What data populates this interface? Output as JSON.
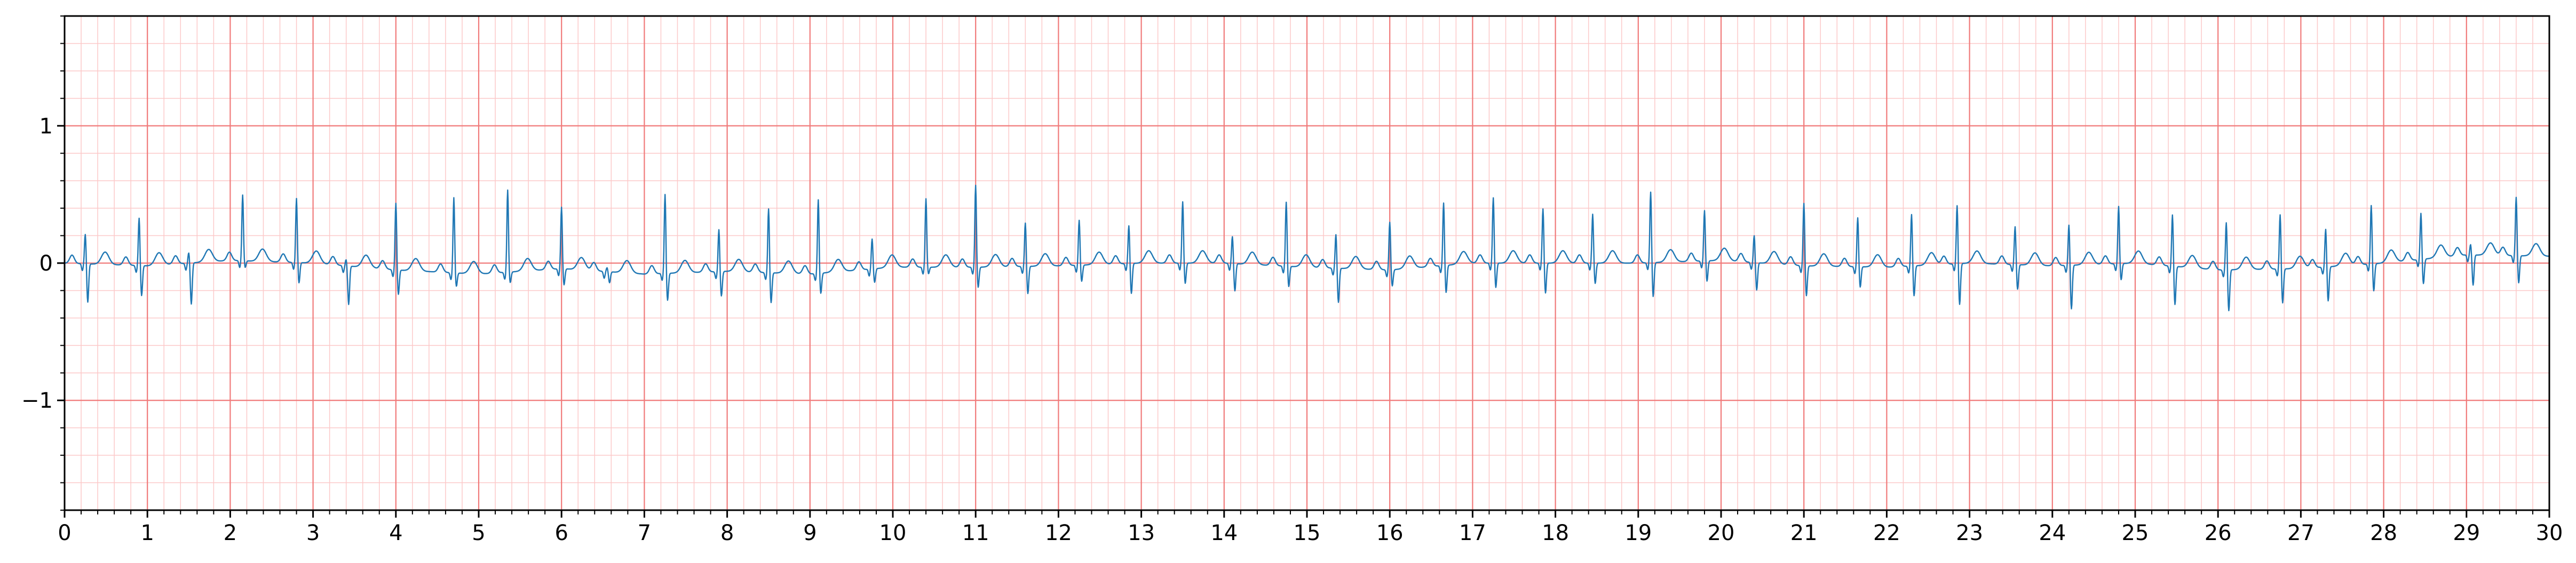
{
  "chart_data": {
    "type": "line",
    "title": "",
    "xlabel": "",
    "ylabel": "",
    "xlim": [
      0,
      30
    ],
    "ylim": [
      -1.8,
      1.8
    ],
    "x_ticks": [
      0,
      1,
      2,
      3,
      4,
      5,
      6,
      7,
      8,
      9,
      10,
      11,
      12,
      13,
      14,
      15,
      16,
      17,
      18,
      19,
      20,
      21,
      22,
      23,
      24,
      25,
      26,
      27,
      28,
      29,
      30
    ],
    "x_tick_labels": [
      "0",
      "1",
      "2",
      "3",
      "4",
      "5",
      "6",
      "7",
      "8",
      "9",
      "10",
      "11",
      "12",
      "13",
      "14",
      "15",
      "16",
      "17",
      "18",
      "19",
      "20",
      "21",
      "22",
      "23",
      "24",
      "25",
      "26",
      "27",
      "28",
      "29",
      "30"
    ],
    "y_ticks": [
      -1,
      0,
      1
    ],
    "y_tick_labels": [
      "−1",
      "0",
      "1"
    ],
    "grid": "on",
    "grid_major_step": {
      "x": 1,
      "y": 1
    },
    "grid_minor_step": {
      "x": 0.2,
      "y": 0.2
    },
    "beat_times": [
      0.25,
      0.9,
      1.5,
      2.15,
      2.8,
      3.4,
      4.0,
      4.7,
      5.35,
      6.0,
      6.55,
      7.25,
      7.9,
      8.5,
      9.1,
      9.75,
      10.4,
      11.0,
      11.6,
      12.25,
      12.85,
      13.5,
      14.1,
      14.75,
      15.35,
      16.0,
      16.65,
      17.25,
      17.85,
      18.45,
      19.15,
      19.8,
      20.4,
      21.0,
      21.65,
      22.3,
      22.85,
      23.55,
      24.2,
      24.8,
      25.45,
      26.1,
      26.75,
      27.3,
      27.85,
      28.45,
      29.05,
      29.6
    ],
    "r_peaks": [
      0.22,
      0.35,
      0.08,
      0.48,
      0.47,
      0.05,
      0.49,
      0.55,
      0.6,
      0.45,
      0.03,
      0.58,
      0.31,
      0.47,
      0.54,
      0.22,
      0.5,
      0.6,
      0.32,
      0.33,
      0.28,
      0.45,
      0.2,
      0.47,
      0.25,
      0.35,
      0.46,
      0.48,
      0.4,
      0.36,
      0.52,
      0.37,
      0.2,
      0.46,
      0.36,
      0.38,
      0.43,
      0.28,
      0.3,
      0.42,
      0.38,
      0.35,
      0.4,
      0.28,
      0.43,
      0.34,
      0.08,
      0.43
    ],
    "s_troughs": [
      -0.28,
      -0.22,
      -0.3,
      -0.05,
      -0.15,
      -0.28,
      -0.18,
      -0.1,
      -0.08,
      -0.12,
      -0.08,
      -0.2,
      -0.18,
      -0.22,
      -0.15,
      -0.1,
      -0.05,
      -0.15,
      -0.2,
      -0.12,
      -0.22,
      -0.15,
      -0.2,
      -0.15,
      -0.25,
      -0.12,
      -0.2,
      -0.18,
      -0.22,
      -0.15,
      -0.25,
      -0.15,
      -0.2,
      -0.22,
      -0.15,
      -0.22,
      -0.3,
      -0.18,
      -0.32,
      -0.12,
      -0.28,
      -0.3,
      -0.25,
      -0.25,
      -0.2,
      -0.18,
      -0.22,
      -0.2
    ],
    "baseline_wander": [
      {
        "x": 0,
        "y": 0.0
      },
      {
        "x": 1,
        "y": -0.02
      },
      {
        "x": 2,
        "y": 0.02
      },
      {
        "x": 3,
        "y": 0.0
      },
      {
        "x": 4,
        "y": -0.05
      },
      {
        "x": 5,
        "y": -0.08
      },
      {
        "x": 6,
        "y": -0.04
      },
      {
        "x": 7,
        "y": -0.08
      },
      {
        "x": 8,
        "y": -0.06
      },
      {
        "x": 9,
        "y": -0.08
      },
      {
        "x": 10,
        "y": -0.03
      },
      {
        "x": 11,
        "y": -0.03
      },
      {
        "x": 12,
        "y": -0.02
      },
      {
        "x": 13,
        "y": 0.0
      },
      {
        "x": 14,
        "y": 0.0
      },
      {
        "x": 15,
        "y": -0.03
      },
      {
        "x": 16,
        "y": -0.05
      },
      {
        "x": 17,
        "y": 0.0
      },
      {
        "x": 18,
        "y": 0.0
      },
      {
        "x": 19,
        "y": 0.0
      },
      {
        "x": 20,
        "y": 0.02
      },
      {
        "x": 21,
        "y": -0.02
      },
      {
        "x": 22,
        "y": -0.03
      },
      {
        "x": 23,
        "y": 0.0
      },
      {
        "x": 24,
        "y": -0.02
      },
      {
        "x": 25,
        "y": 0.0
      },
      {
        "x": 26,
        "y": -0.05
      },
      {
        "x": 27,
        "y": -0.04
      },
      {
        "x": 28,
        "y": 0.0
      },
      {
        "x": 29,
        "y": 0.06
      },
      {
        "x": 30,
        "y": 0.05
      }
    ],
    "colors": {
      "trace": "#1f77b4",
      "grid_major": "#f07a7a",
      "grid_minor": "#fcc9c9",
      "axis": "#000000"
    }
  }
}
